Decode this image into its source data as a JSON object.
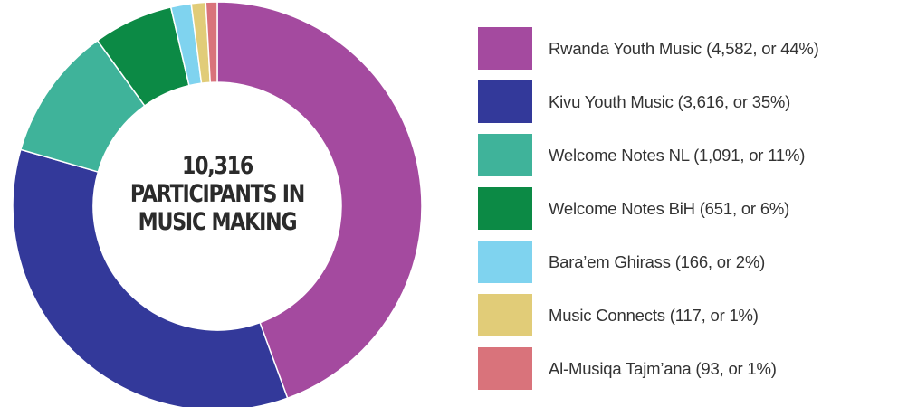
{
  "chart_data": {
    "type": "pie",
    "variant": "donut",
    "center_label": {
      "lines": [
        "10,316",
        "PARTICIPANTS IN",
        "MUSIC MAKING"
      ]
    },
    "legend_placement": "right",
    "slices": [
      {
        "label": "Rwanda Youth Music (4,582, or 44%)",
        "value": 4582,
        "color": "#a44a9f"
      },
      {
        "label": "Kivu Youth Music (3,616, or 35%)",
        "value": 3616,
        "color": "#33399a"
      },
      {
        "label": "Welcome Notes NL (1,091, or 11%)",
        "value": 1091,
        "color": "#3fb39a"
      },
      {
        "label": "Welcome Notes BiH (651, or 6%)",
        "value": 651,
        "color": "#0c8a45"
      },
      {
        "label": "Bara’em Ghirass (166, or 2%)",
        "value": 166,
        "color": "#7fd3ef"
      },
      {
        "label": "Music Connects (117, or 1%)",
        "value": 117,
        "color": "#e1cc78"
      },
      {
        "label": "Al-Musiqa Tajm’ana (93, or 1%)",
        "value": 93,
        "color": "#d9737b"
      }
    ]
  }
}
